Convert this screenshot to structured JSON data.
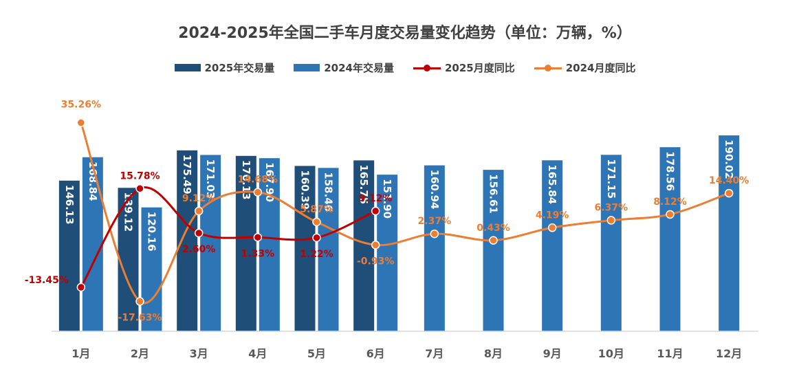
{
  "chart_data": {
    "type": "bar",
    "title": "2024-2025年全国二手车月度交易量变化趋势（单位：万辆，%）",
    "categories": [
      "1月",
      "2月",
      "3月",
      "4月",
      "5月",
      "6月",
      "7月",
      "8月",
      "9月",
      "10月",
      "11月",
      "12月"
    ],
    "series": [
      {
        "name": "2025年交易量",
        "type": "bar",
        "color": "#1f4e79",
        "values": [
          146.13,
          139.12,
          175.49,
          170.13,
          160.39,
          165.75,
          null,
          null,
          null,
          null,
          null,
          null
        ]
      },
      {
        "name": "2024年交易量",
        "type": "bar",
        "color": "#2e75b6",
        "values": [
          168.84,
          120.16,
          171.03,
          167.9,
          158.46,
          151.9,
          160.94,
          156.61,
          165.84,
          171.15,
          178.56,
          190.02
        ]
      },
      {
        "name": "2025月度同比",
        "type": "line",
        "color": "#c00000",
        "values": [
          -13.45,
          15.78,
          2.6,
          1.33,
          1.22,
          9.12,
          null,
          null,
          null,
          null,
          null,
          null
        ],
        "labels": [
          "-13.45%",
          "15.78%",
          "2.60%",
          "1.33%",
          "1.22%",
          "9.12%",
          "",
          "",
          "",
          "",
          "",
          ""
        ]
      },
      {
        "name": "2024月度同比",
        "type": "line",
        "color": "#ed7d31",
        "values": [
          35.26,
          -17.63,
          9.12,
          14.68,
          5.87,
          -0.93,
          2.37,
          0.43,
          4.19,
          6.37,
          8.12,
          14.4
        ],
        "labels": [
          "35.26%",
          "-17.63%",
          "9.12%",
          "14.68%",
          "5.87%",
          "-0.93%",
          "2.37%",
          "0.43%",
          "4.19%",
          "6.37%",
          "8.12%",
          "14.40%"
        ]
      }
    ],
    "bar_ylim": [
      0,
      200
    ],
    "line_ylim": [
      -22,
      37
    ],
    "grid": false,
    "legend_position": "top-center"
  }
}
